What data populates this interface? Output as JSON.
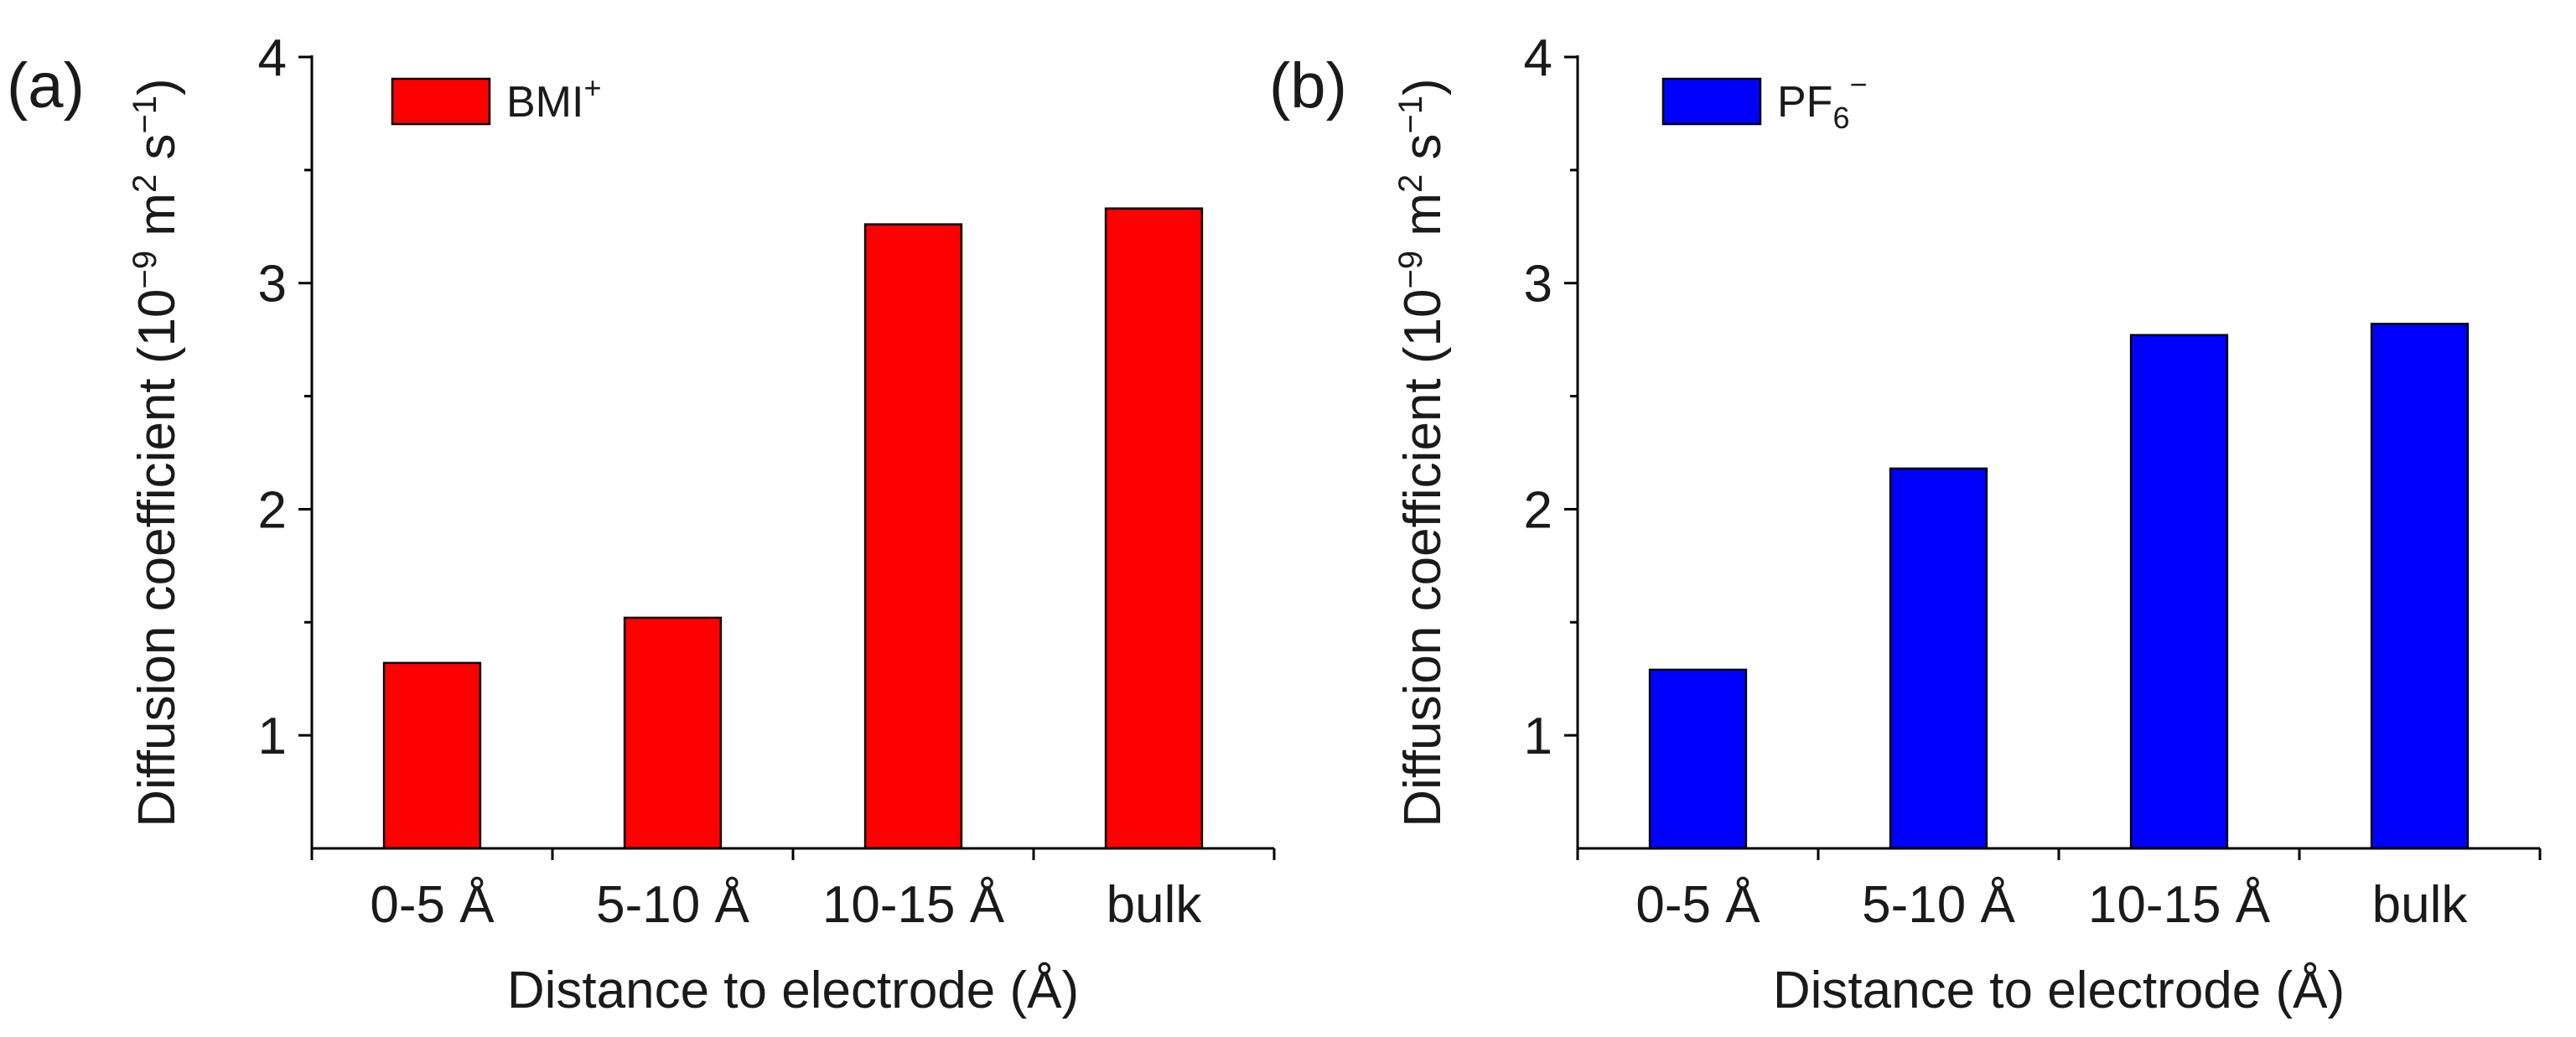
{
  "chart_data": [
    {
      "type": "bar",
      "panel_label": "(a)",
      "categories": [
        "0-5 Å",
        "5-10 Å",
        "10-15 Å",
        "bulk"
      ],
      "values": [
        1.32,
        1.52,
        3.26,
        3.33
      ],
      "series_name": "BMI⁺",
      "legend": {
        "base": "BMI",
        "sup": "+",
        "sub": ""
      },
      "color": "#ff0000",
      "xlabel": "Distance to electrode (Å)",
      "ylabel": "Diffusion coefficient (10⁻⁹ m² s⁻¹)",
      "ylabel_parts": {
        "pre": "Diffusion coefficient (10",
        "e1": "−9",
        "mid": " m",
        "e2": "2",
        "mid2": " s",
        "e3": "−1",
        "post": ")"
      },
      "ylim": [
        0.5,
        4
      ],
      "yticks": [
        1,
        2,
        3,
        4
      ],
      "yticks_minor": [
        1.5,
        2.5,
        3.5
      ],
      "legend_position": "top-left",
      "grid": false
    },
    {
      "type": "bar",
      "panel_label": "(b)",
      "categories": [
        "0-5 Å",
        "5-10 Å",
        "10-15 Å",
        "bulk"
      ],
      "values": [
        1.29,
        2.18,
        2.77,
        2.82
      ],
      "series_name": "PF₆⁻",
      "legend": {
        "base": "PF",
        "sup": "−",
        "sub": "6"
      },
      "color": "#0000ff",
      "xlabel": "Distance to electrode (Å)",
      "ylabel": "Diffusion coefficient (10⁻⁹ m² s⁻¹)",
      "ylabel_parts": {
        "pre": "Diffusion coefficient (10",
        "e1": "−9",
        "mid": " m",
        "e2": "2",
        "mid2": " s",
        "e3": "−1",
        "post": ")"
      },
      "ylim": [
        0.5,
        4
      ],
      "yticks": [
        1,
        2,
        3,
        4
      ],
      "yticks_minor": [
        1.5,
        2.5,
        3.5
      ],
      "legend_position": "top-left",
      "grid": false
    }
  ]
}
